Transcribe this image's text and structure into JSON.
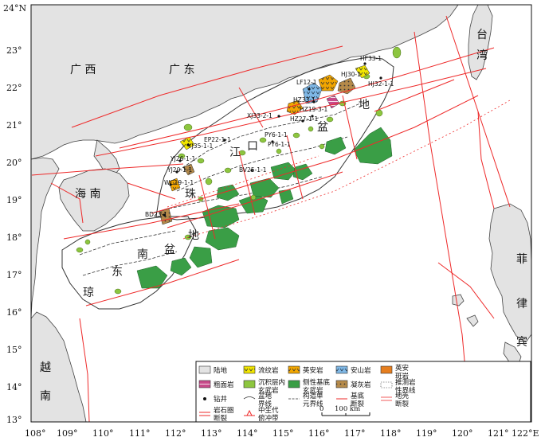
{
  "map": {
    "lon_ticks": [
      "108°",
      "109°",
      "110°",
      "111°",
      "112°",
      "113°",
      "114°",
      "115°",
      "116°",
      "117°",
      "118°",
      "119°",
      "120°",
      "121°",
      "122°E"
    ],
    "lat_ticks": [
      "24°N",
      "23°",
      "22°",
      "21°",
      "20°",
      "19°",
      "18°",
      "17°",
      "16°",
      "15°",
      "14°",
      "13°"
    ],
    "place_labels": {
      "guangxi": "广 西",
      "guangdong": "广 东",
      "hainan": "海 南",
      "taiwan_1": "台",
      "taiwan_2": "湾",
      "vietnam_1": "越",
      "vietnam_2": "南",
      "philippines_1": "菲",
      "philippines_2": "律",
      "philippines_3": "宾"
    },
    "basin_labels": {
      "pearl_1": "珠",
      "pearl_2": "江",
      "pearl_3": "口",
      "pearl_4": "盆",
      "pearl_5": "地",
      "qdn_1": "琼",
      "qdn_2": "东",
      "qdn_3": "南",
      "qdn_4": "盆",
      "qdn_5": "地",
      "basin_dx": "地",
      "basin_pen": "盆"
    },
    "well_labels": {
      "hf": "HF33-1",
      "hj_a": "HJ32-1-1",
      "hj_b": "HJ30-1",
      "lf": "LF12-1",
      "hz_a": "HZ33-1",
      "hz_b": "HZ19-3-1",
      "hz_c": "HZ27-1-1",
      "xj": "XJ33-2-1",
      "pv": "PY6-1-1",
      "pv2": "PY6-1-1",
      "ep": "EP22-1-1",
      "yj_a": "YJ35-1-1",
      "yj_b": "YJ26-1-1",
      "yj_c": "YJ20-1-1",
      "wc": "WC19-1-1",
      "bd": "BD23-1",
      "bv": "BV25-1-1"
    },
    "legend": {
      "land": "陆地",
      "rhyolite": "流纹岩",
      "dacite": "英安岩",
      "andesite": "安山岩",
      "interp_1": "英安",
      "interp_2": "斑岩",
      "trachyte": "粗面岩",
      "sill_1": "沉积层内",
      "sill_2": "玄武岩",
      "basalt_1": "侧性基底",
      "basalt_2": "玄武岩",
      "tuff": "凝灰岩",
      "lith_1": "推测岩",
      "lith_2": "性界线",
      "well": "钻井",
      "basin_1": "盆地",
      "basin_2": "界线",
      "unit_1": "构造单",
      "unit_2": "元界线",
      "fault_1": "基底",
      "fault_2": "断裂",
      "crust_1": "地壳",
      "crust_2": "断裂",
      "litho_1": "岩石圈",
      "litho_2": "断裂",
      "mesozoic_1": "中生代",
      "mesozoic_2": "俯冲带",
      "scale_0": "0",
      "scale_100": "100 km"
    },
    "colors": {
      "land": "#e3e3e3",
      "basalt": "#3a9e46",
      "sill": "#8dc63f",
      "rhyolite": "#f2e600",
      "dacite": "#f2a600",
      "andesite": "#7fb8e6",
      "trachyte": "#c84a8a",
      "tuff": "#b58a4a",
      "fault": "#ee2a2a",
      "interp": "#e67e1e"
    }
  }
}
